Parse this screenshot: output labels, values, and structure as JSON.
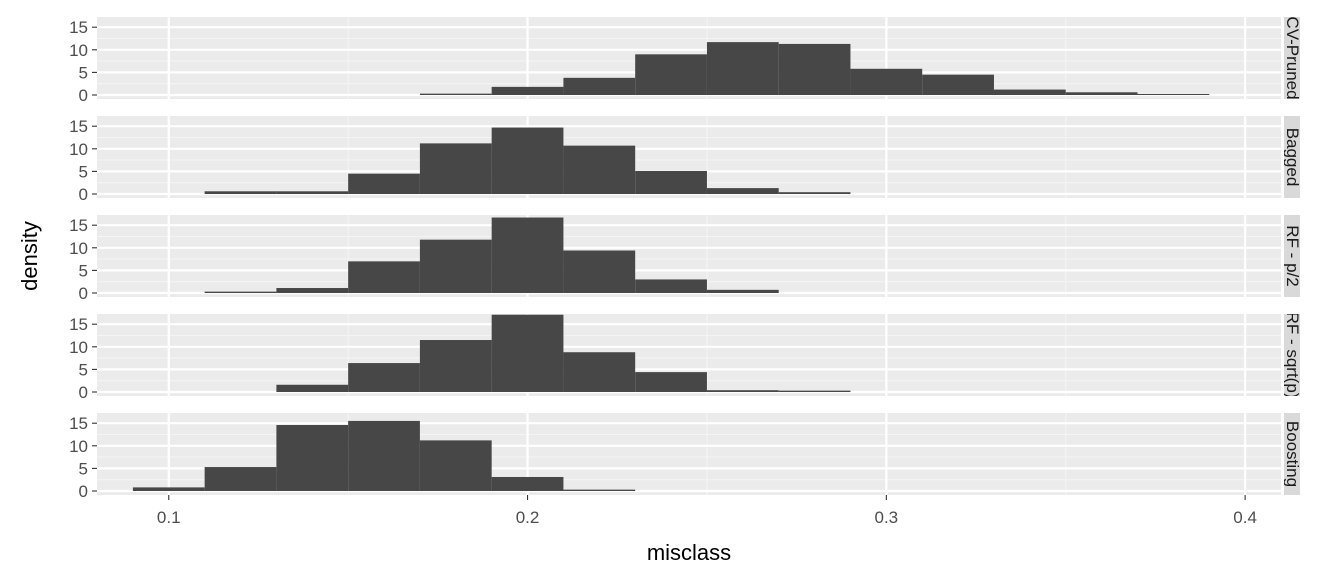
{
  "chart_data": {
    "type": "histogram",
    "xlabel": "misclass",
    "ylabel": "density",
    "xlim": [
      0.08,
      0.41
    ],
    "ylim": [
      0,
      17.5
    ],
    "x_ticks": [
      0.1,
      0.2,
      0.3,
      0.4
    ],
    "x_tick_labels": [
      "0.1",
      "0.2",
      "0.3",
      "0.4"
    ],
    "y_ticks": [
      0,
      5,
      10,
      15
    ],
    "y_tick_labels": [
      "0",
      "5",
      "10",
      "15"
    ],
    "grid": true,
    "facet": "rows",
    "bin_width": 0.02,
    "bar_color": "#474747",
    "panel_background": "#ebebeb",
    "strip_background": "#d9d9d9",
    "panels": [
      {
        "strip_label": "CV-Pruned",
        "bins": [
          {
            "start": 0.17,
            "density": 0.3
          },
          {
            "start": 0.19,
            "density": 1.8
          },
          {
            "start": 0.21,
            "density": 3.8
          },
          {
            "start": 0.23,
            "density": 9.0
          },
          {
            "start": 0.25,
            "density": 11.7
          },
          {
            "start": 0.27,
            "density": 11.3
          },
          {
            "start": 0.29,
            "density": 5.8
          },
          {
            "start": 0.31,
            "density": 4.5
          },
          {
            "start": 0.33,
            "density": 1.2
          },
          {
            "start": 0.35,
            "density": 0.6
          },
          {
            "start": 0.37,
            "density": 0.2
          }
        ]
      },
      {
        "strip_label": "Bagged",
        "bins": [
          {
            "start": 0.11,
            "density": 0.6
          },
          {
            "start": 0.13,
            "density": 0.6
          },
          {
            "start": 0.15,
            "density": 4.5
          },
          {
            "start": 0.17,
            "density": 11.2
          },
          {
            "start": 0.19,
            "density": 14.7
          },
          {
            "start": 0.21,
            "density": 10.7
          },
          {
            "start": 0.23,
            "density": 5.1
          },
          {
            "start": 0.25,
            "density": 1.3
          },
          {
            "start": 0.27,
            "density": 0.4
          }
        ]
      },
      {
        "strip_label": "RF - p/2",
        "bins": [
          {
            "start": 0.11,
            "density": 0.3
          },
          {
            "start": 0.13,
            "density": 1.1
          },
          {
            "start": 0.15,
            "density": 7.0
          },
          {
            "start": 0.17,
            "density": 11.8
          },
          {
            "start": 0.19,
            "density": 16.7
          },
          {
            "start": 0.21,
            "density": 9.4
          },
          {
            "start": 0.23,
            "density": 3.0
          },
          {
            "start": 0.25,
            "density": 0.7
          }
        ]
      },
      {
        "strip_label": "RF - sqrt(p)",
        "bins": [
          {
            "start": 0.13,
            "density": 1.6
          },
          {
            "start": 0.15,
            "density": 6.4
          },
          {
            "start": 0.17,
            "density": 11.5
          },
          {
            "start": 0.19,
            "density": 17.1
          },
          {
            "start": 0.21,
            "density": 8.8
          },
          {
            "start": 0.23,
            "density": 4.4
          },
          {
            "start": 0.25,
            "density": 0.4
          },
          {
            "start": 0.27,
            "density": 0.3
          }
        ]
      },
      {
        "strip_label": "Boosting",
        "bins": [
          {
            "start": 0.09,
            "density": 0.8
          },
          {
            "start": 0.11,
            "density": 5.3
          },
          {
            "start": 0.13,
            "density": 14.6
          },
          {
            "start": 0.15,
            "density": 15.5
          },
          {
            "start": 0.17,
            "density": 11.2
          },
          {
            "start": 0.19,
            "density": 3.1
          },
          {
            "start": 0.21,
            "density": 0.3
          }
        ]
      }
    ]
  }
}
